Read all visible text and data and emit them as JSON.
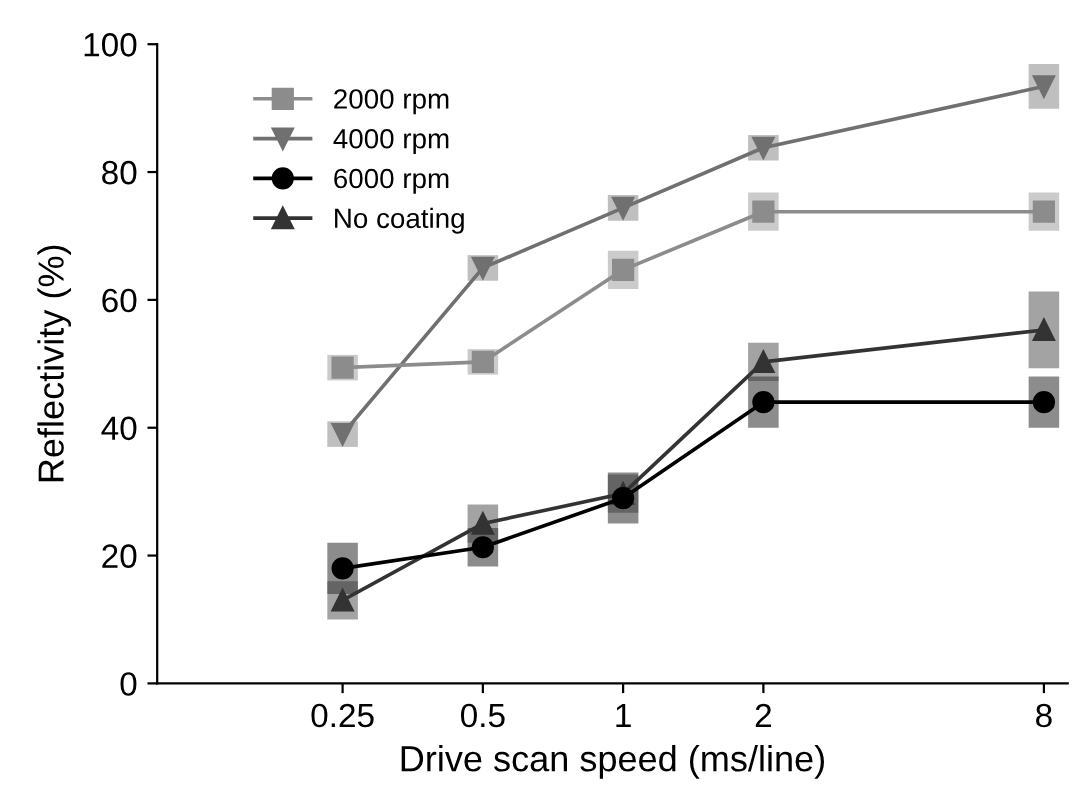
{
  "chart_data": {
    "type": "line",
    "xlabel": "Drive scan speed (ms/line)",
    "ylabel": "Reflectivity (%)",
    "x": [
      0.25,
      0.5,
      1,
      2,
      8
    ],
    "log": "x",
    "xlim": [
      0.1,
      9
    ],
    "xticks": [
      0.25,
      0.5,
      1,
      2,
      8
    ],
    "ylim": [
      0,
      100
    ],
    "yticks": [
      0,
      20,
      40,
      60,
      80,
      100
    ],
    "grid": false,
    "legend": "top left",
    "series": [
      {
        "name": "2000 rpm",
        "color": "#8c8c8c",
        "marker": "square",
        "values": [
          49.4,
          50.3,
          64.7,
          73.8,
          73.8
        ],
        "errors": [
          2,
          2,
          3,
          3,
          3
        ]
      },
      {
        "name": "4000 rpm",
        "color": "#707070",
        "marker": "triangle_down",
        "values": [
          39,
          65,
          74.4,
          83.8,
          93.4
        ],
        "errors": [
          2,
          2,
          2,
          2,
          3.5
        ]
      },
      {
        "name": "6000 rpm",
        "color": "#000000",
        "marker": "circle",
        "values": [
          18,
          21.3,
          29,
          44,
          44
        ],
        "errors": [
          4,
          3,
          4,
          4,
          4
        ]
      },
      {
        "name": "No coating",
        "color": "#333333",
        "marker": "triangle",
        "values": [
          13,
          25,
          29.7,
          50.3,
          55.3
        ],
        "errors": [
          3,
          3,
          3,
          3,
          6
        ]
      }
    ]
  }
}
